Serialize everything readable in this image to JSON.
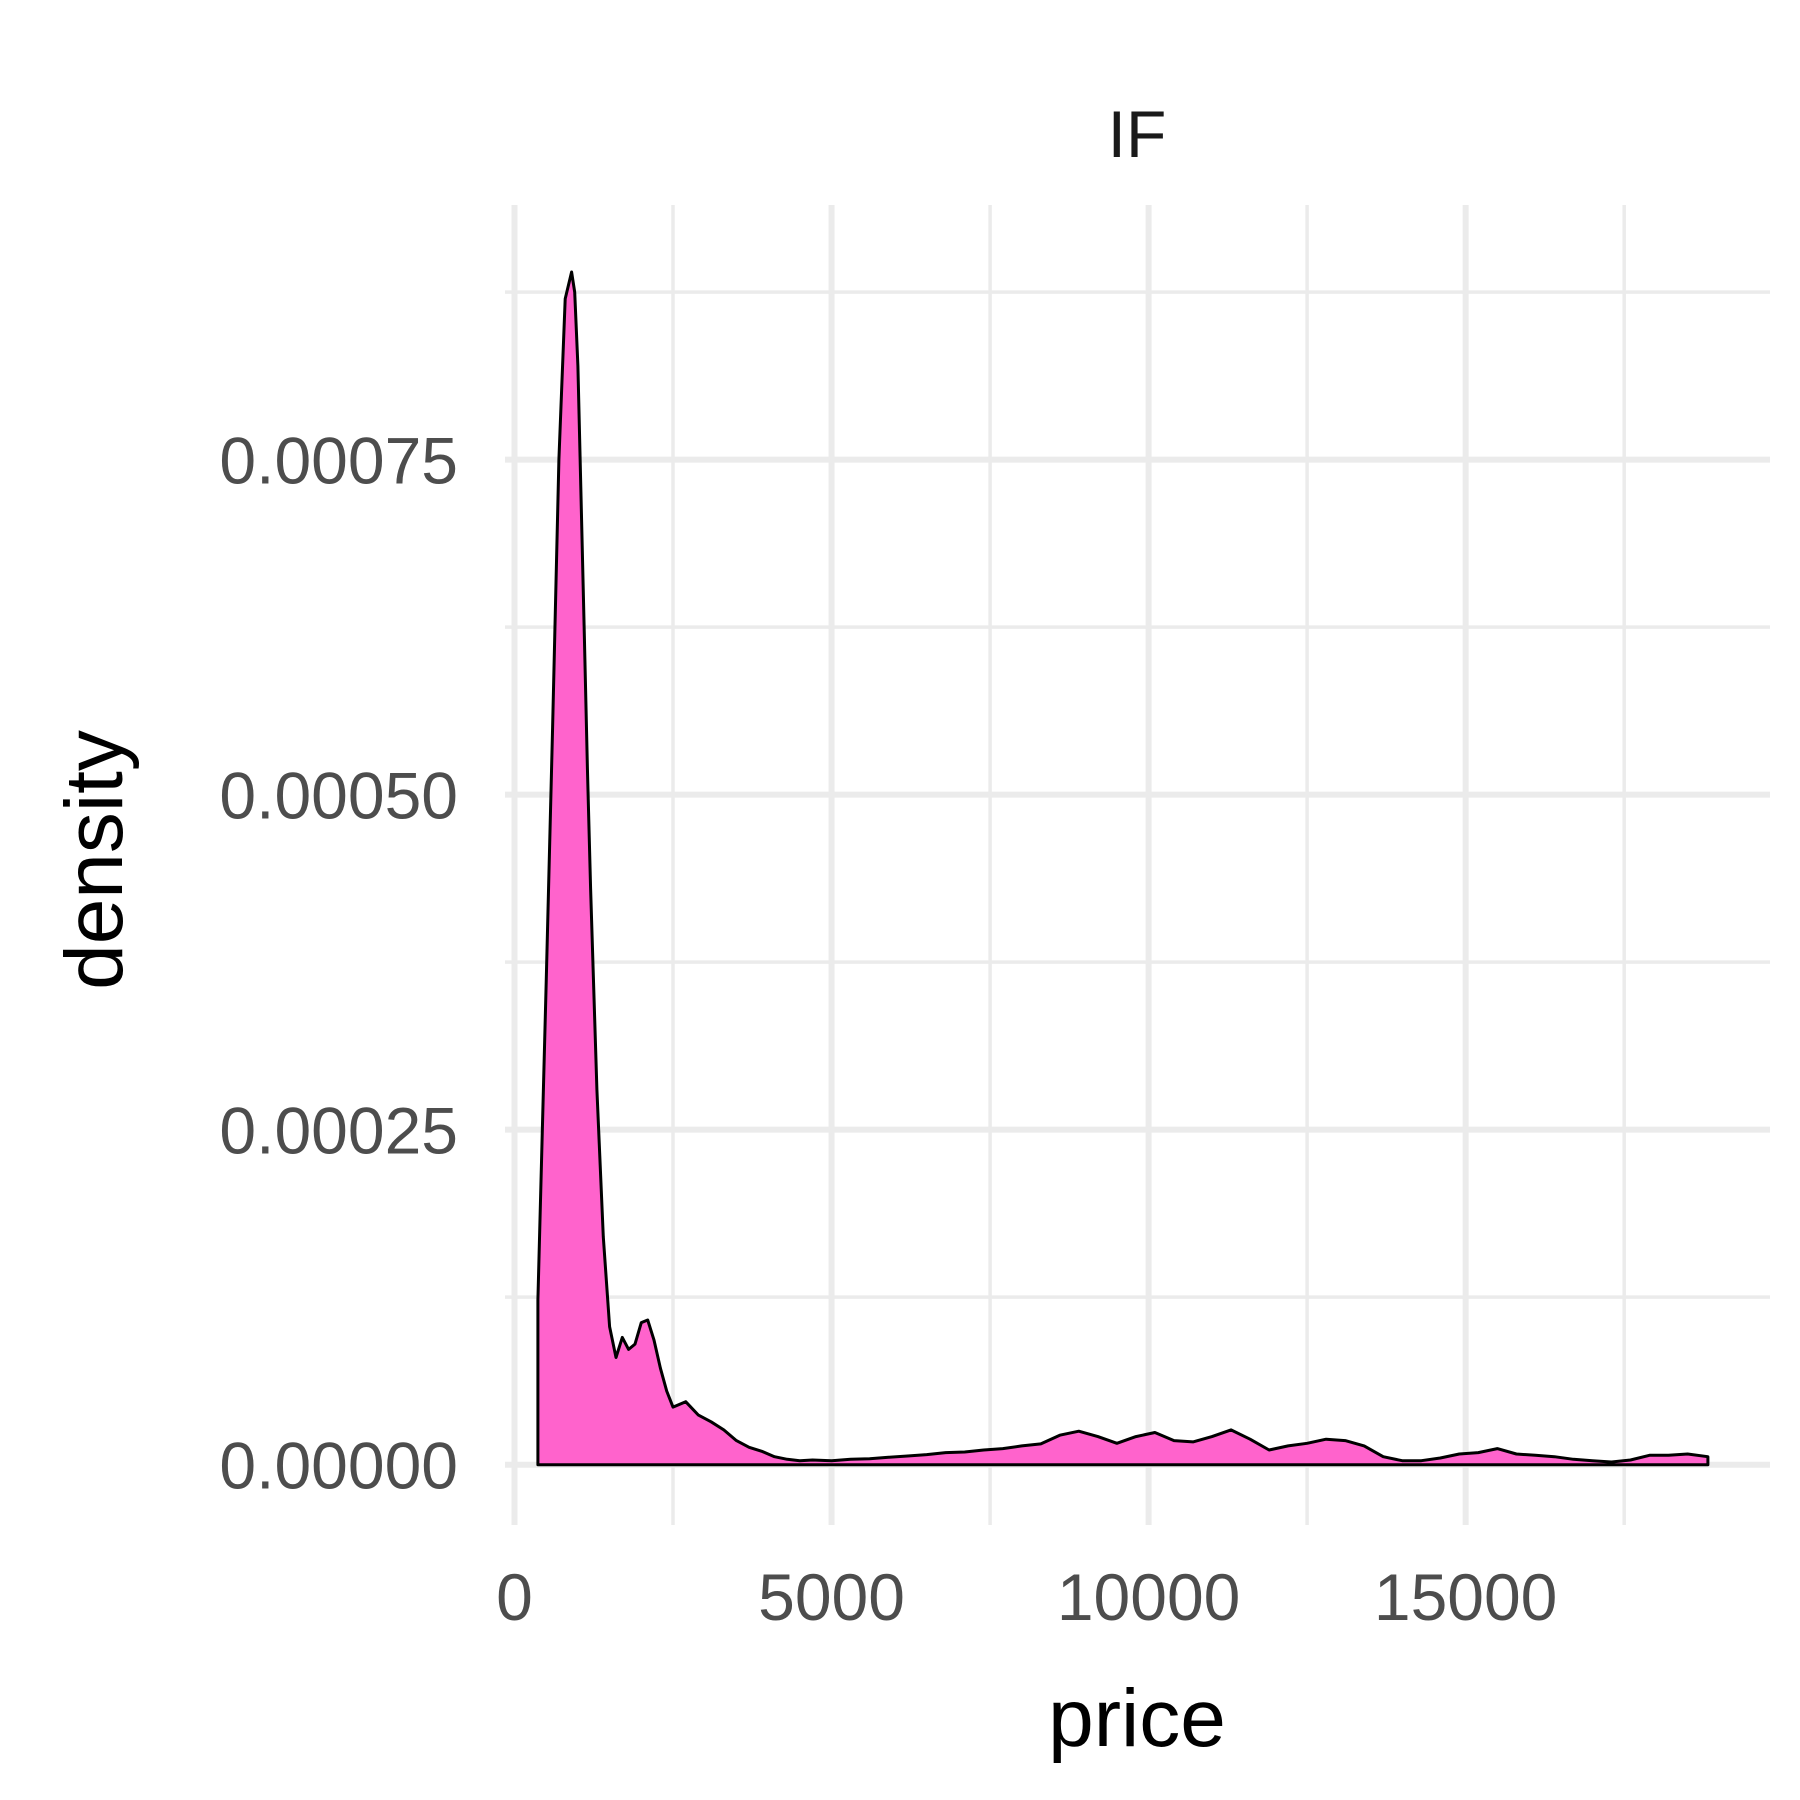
{
  "chart_data": {
    "type": "area",
    "facet_label": "IF",
    "xlabel": "price",
    "ylabel": "density",
    "xlim": [
      -150,
      19800
    ],
    "ylim": [
      -4.5e-05,
      0.00094
    ],
    "x_ticks": [
      0,
      5000,
      10000,
      15000
    ],
    "x_tick_labels": [
      "0",
      "5000",
      "10000",
      "15000"
    ],
    "x_minor_ticks": [
      2500,
      7500,
      12500,
      17500
    ],
    "y_ticks": [
      0,
      0.00025,
      0.0005,
      0.00075
    ],
    "y_tick_labels": [
      "0.00000",
      "0.00025",
      "0.00050",
      "0.00075"
    ],
    "y_minor_ticks": [
      0.000125,
      0.000375,
      0.000625,
      0.000875
    ],
    "grid": true,
    "legend": "none",
    "fill_color": "#FF63CC",
    "line_color": "#000000",
    "x": [
      369,
      500,
      600,
      700,
      800,
      900,
      950,
      1000,
      1050,
      1100,
      1150,
      1200,
      1300,
      1400,
      1500,
      1600,
      1700,
      1800,
      1900,
      2000,
      2100,
      2200,
      2300,
      2400,
      2500,
      2700,
      2900,
      3100,
      3300,
      3500,
      3700,
      3900,
      4100,
      4300,
      4500,
      4700,
      5000,
      5300,
      5600,
      5900,
      6200,
      6500,
      6800,
      7100,
      7400,
      7700,
      8000,
      8300,
      8600,
      8900,
      9200,
      9500,
      9800,
      10100,
      10400,
      10700,
      11000,
      11300,
      11600,
      11900,
      12200,
      12500,
      12800,
      13100,
      13400,
      13700,
      14000,
      14300,
      14600,
      14900,
      15200,
      15500,
      15800,
      16100,
      16400,
      16700,
      17000,
      17300,
      17600,
      17900,
      18200,
      18500,
      18820
    ],
    "y": [
      0.000123,
      0.00036,
      0.00055,
      0.00075,
      0.00087,
      0.00089,
      0.000875,
      0.00082,
      0.00072,
      0.00062,
      0.00052,
      0.00043,
      0.00028,
      0.00017,
      0.000103,
      8e-05,
      9.5e-05,
      8.6e-05,
      9e-05,
      0.000106,
      0.000108,
      9.3e-05,
      7.2e-05,
      5.5e-05,
      4.3e-05,
      4.7e-05,
      3.7e-05,
      3.2e-05,
      2.6e-05,
      1.8e-05,
      1.3e-05,
      1e-05,
      6e-06,
      4e-06,
      3e-06,
      3.5e-06,
      3e-06,
      4e-06,
      4.5e-06,
      5.5e-06,
      6.5e-06,
      7.5e-06,
      9e-06,
      9.5e-06,
      1.1e-05,
      1.2e-05,
      1.4e-05,
      1.55e-05,
      2.2e-05,
      2.5e-05,
      2.1e-05,
      1.6e-05,
      2.1e-05,
      2.4e-05,
      1.8e-05,
      1.7e-05,
      2.1e-05,
      2.6e-05,
      1.9e-05,
      1.1e-05,
      1.4e-05,
      1.6e-05,
      1.9e-05,
      1.8e-05,
      1.4e-05,
      6e-06,
      3e-06,
      3e-06,
      5e-06,
      8e-06,
      9e-06,
      1.2e-05,
      8e-06,
      7e-06,
      6e-06,
      4e-06,
      3e-06,
      2e-06,
      3.5e-06,
      7e-06,
      7e-06,
      8e-06,
      6e-06
    ]
  }
}
